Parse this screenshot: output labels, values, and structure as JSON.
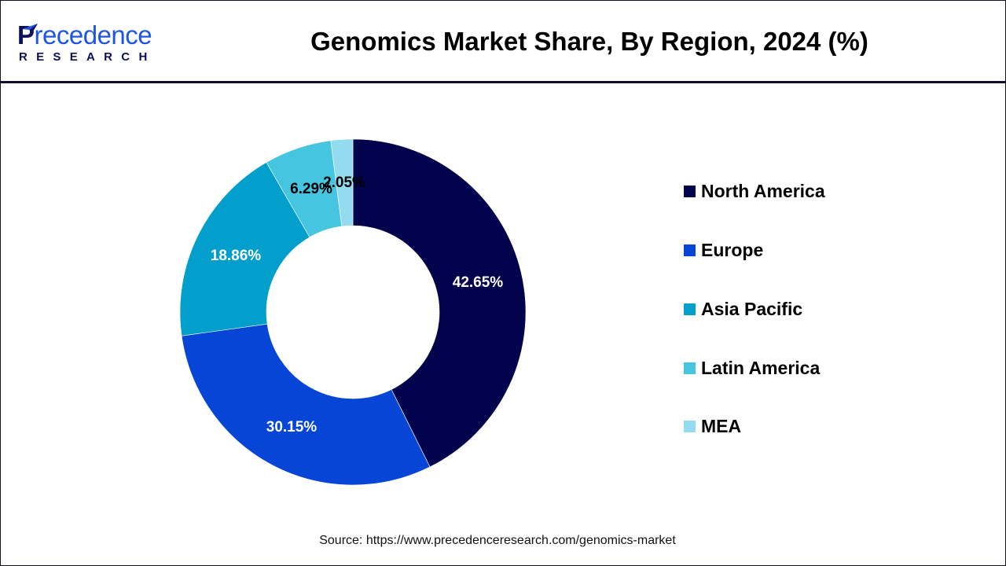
{
  "header": {
    "logo_primary": "Precedence",
    "logo_primary_initial": "P",
    "logo_primary_rest": "recedence",
    "logo_secondary": "RESEARCH",
    "title": "Genomics Market Share, By Region, 2024 (%)"
  },
  "legend": {
    "items": [
      {
        "label": "North America",
        "color": "#02024d"
      },
      {
        "label": "Europe",
        "color": "#0645d6"
      },
      {
        "label": "Asia Pacific",
        "color": "#029fcc"
      },
      {
        "label": "Latin America",
        "color": "#45c5e0"
      },
      {
        "label": "MEA",
        "color": "#93dbee"
      }
    ]
  },
  "footer": {
    "source": "Source: https://www.precedenceresearch.com/genomics-market"
  },
  "chart_data": {
    "type": "pie",
    "subtype": "donut",
    "title": "Genomics Market Share, By Region, 2024 (%)",
    "categories": [
      "North America",
      "Europe",
      "Asia Pacific",
      "Latin America",
      "MEA"
    ],
    "values": [
      42.65,
      30.15,
      18.86,
      6.29,
      2.05
    ],
    "labels": [
      "42.65%",
      "30.15%",
      "18.86%",
      "6.29%",
      "2.05%"
    ],
    "colors": [
      "#02024d",
      "#0645d6",
      "#029fcc",
      "#45c5e0",
      "#93dbee"
    ],
    "label_colors": [
      "#ffffff",
      "#ffffff",
      "#ffffff",
      "#000000",
      "#000000"
    ],
    "start_angle": "12 o'clock",
    "direction": "clockwise",
    "legend_position": "right",
    "unit": "%"
  }
}
